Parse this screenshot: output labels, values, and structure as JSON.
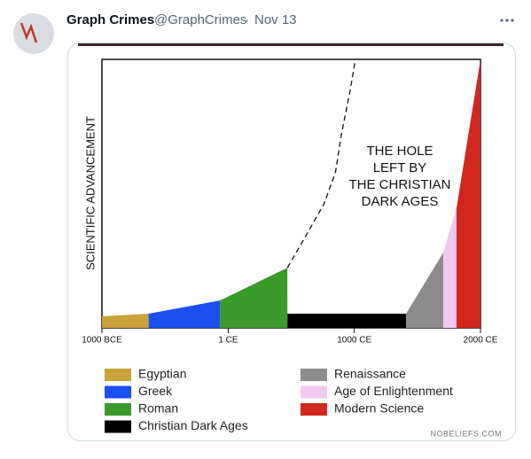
{
  "tweet": {
    "name": "Graph Crimes",
    "handle": "@GraphCrimes",
    "separator": "·",
    "date": "Nov 13"
  },
  "chart_data": {
    "type": "area",
    "ylabel": "SCIENTIFIC ADVANCEMENT",
    "annotation": [
      "THE HOLE",
      "LEFT BY",
      "THE CHRISTIAN",
      "DARK AGES"
    ],
    "watermark": "NOBELIEFS.COM",
    "xlim": [
      -1000,
      2000
    ],
    "xticks": [
      {
        "value": -1000,
        "label": "1000 BCE"
      },
      {
        "value": 1,
        "label": "1 CE"
      },
      {
        "value": 1000,
        "label": "1000 CE"
      },
      {
        "value": 2000,
        "label": "2000 CE"
      }
    ],
    "ylim": [
      0,
      100
    ],
    "series": [
      {
        "name": "Egyptian",
        "color": "#c9a23a",
        "x": [
          -1000,
          -630
        ],
        "values": [
          4.3,
          5.3
        ]
      },
      {
        "name": "Greek",
        "color": "#1a4ff0",
        "x": [
          -630,
          -65
        ],
        "values": [
          5.3,
          10.2
        ]
      },
      {
        "name": "Roman",
        "color": "#3a9a2a",
        "x": [
          -65,
          470
        ],
        "values": [
          10.2,
          22.4
        ]
      },
      {
        "name": "Christian Dark Ages",
        "color": "#000000",
        "x": [
          470,
          1410
        ],
        "values": [
          5.3,
          5.3
        ]
      },
      {
        "name": "Renaissance",
        "color": "#8c8c8c",
        "x": [
          1410,
          1705
        ],
        "values": [
          5.3,
          28
        ]
      },
      {
        "name": "Age of Enlightenment",
        "color": "#f2c8ef",
        "x": [
          1705,
          1810
        ],
        "values": [
          28,
          44.6
        ]
      },
      {
        "name": "Modern Science",
        "color": "#d0281e",
        "x": [
          1810,
          2000
        ],
        "values": [
          44.6,
          100
        ]
      }
    ],
    "trend": {
      "x": [
        470,
        620,
        760,
        850,
        900,
        970,
        1005
      ],
      "values": [
        22.4,
        34.6,
        46.2,
        57.8,
        72.6,
        89.1,
        99
      ]
    }
  }
}
